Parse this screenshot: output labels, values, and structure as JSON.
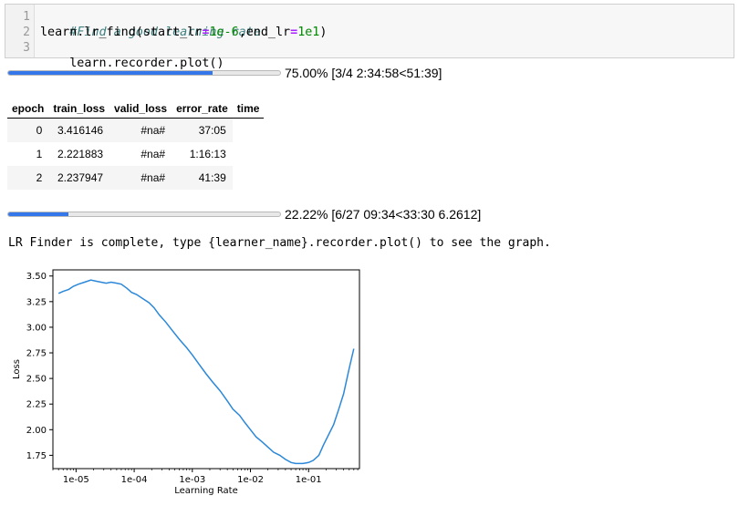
{
  "code_cell": {
    "line_numbers": [
      "1",
      "2",
      "3"
    ],
    "lines": {
      "comment": "#Find a good learning rate",
      "l2_a": "learn.lr_find(start_lr",
      "l2_eq1": "=",
      "l2_num1": "1e-6",
      "l2_b": ",end_lr",
      "l2_eq2": "=",
      "l2_num2": "1e1",
      "l2_c": ")",
      "l3": "learn.recorder.plot()"
    }
  },
  "progress_outer": {
    "fraction": 0.75,
    "label": "75.00% [3/4 2:34:58<51:39]"
  },
  "table": {
    "headers": [
      "epoch",
      "train_loss",
      "valid_loss",
      "error_rate",
      "time"
    ],
    "rows": [
      [
        "0",
        "3.416146",
        "#na#",
        "37:05",
        ""
      ],
      [
        "1",
        "2.221883",
        "#na#",
        "1:16:13",
        ""
      ],
      [
        "2",
        "2.237947",
        "#na#",
        "41:39",
        ""
      ]
    ]
  },
  "progress_inner": {
    "fraction": 0.2222,
    "label": "22.22% [6/27 09:34<33:30 6.2612]"
  },
  "message": "LR Finder is complete, type {learner_name}.recorder.plot() to see the graph.",
  "chart_data": {
    "type": "line",
    "xlabel": "Learning Rate",
    "ylabel": "Loss",
    "xscale": "log",
    "xlim": [
      4e-06,
      0.75
    ],
    "ylim": [
      1.62,
      3.56
    ],
    "x_ticks": [
      1e-05,
      0.0001,
      0.001,
      0.01,
      0.1
    ],
    "x_tick_labels": [
      "1e-05",
      "1e-04",
      "1e-03",
      "1e-02",
      "1e-01"
    ],
    "y_ticks": [
      1.75,
      2.0,
      2.25,
      2.5,
      2.75,
      3.0,
      3.25,
      3.5
    ],
    "y_tick_labels": [
      "1.75",
      "2.00",
      "2.25",
      "2.50",
      "2.75",
      "3.00",
      "3.25",
      "3.50"
    ],
    "grid": false,
    "line_color": "#2b88d8",
    "series": [
      {
        "x": [
          5e-06,
          6e-06,
          7.5e-06,
          9e-06,
          1.1e-05,
          1.4e-05,
          1.8e-05,
          2.2e-05,
          2.7e-05,
          3.3e-05,
          4e-05,
          5e-05,
          6e-05,
          7.5e-05,
          9e-05,
          0.00011,
          0.00014,
          0.00018,
          0.00022,
          0.00027,
          0.00035,
          0.00045,
          0.0006,
          0.0008,
          0.001,
          0.0013,
          0.0017,
          0.0022,
          0.003,
          0.004,
          0.005,
          0.0065,
          0.008,
          0.01,
          0.0125,
          0.016,
          0.02,
          0.025,
          0.032,
          0.04,
          0.05,
          0.06,
          0.07,
          0.08,
          0.1,
          0.12,
          0.15,
          0.18,
          0.22,
          0.27,
          0.33,
          0.4,
          0.5,
          0.6
        ],
        "y": [
          3.33,
          3.35,
          3.37,
          3.4,
          3.42,
          3.44,
          3.46,
          3.45,
          3.44,
          3.43,
          3.44,
          3.43,
          3.42,
          3.38,
          3.34,
          3.32,
          3.28,
          3.24,
          3.19,
          3.12,
          3.05,
          2.97,
          2.88,
          2.8,
          2.73,
          2.64,
          2.55,
          2.47,
          2.38,
          2.28,
          2.2,
          2.14,
          2.07,
          2.0,
          1.93,
          1.88,
          1.83,
          1.78,
          1.75,
          1.71,
          1.68,
          1.67,
          1.67,
          1.67,
          1.68,
          1.7,
          1.75,
          1.85,
          1.95,
          2.05,
          2.2,
          2.35,
          2.6,
          2.79
        ]
      }
    ]
  }
}
